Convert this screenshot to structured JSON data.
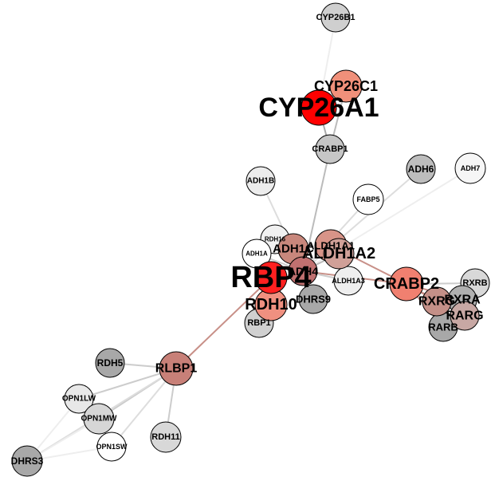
{
  "nodes": [
    "CYP26B1",
    "CRABP1",
    "ADH1B",
    "ADH6",
    "ADH7",
    "FABP5",
    "RDH16",
    "ADH1A",
    "ALDH1A3",
    "DHRS9",
    "RBP1",
    "RXRB",
    "RARB",
    "RXRA",
    "RXRG",
    "RARG",
    "RDH5",
    "OPN1LW",
    "OPN1MW",
    "OPN1SW",
    "RDH11",
    "DHRS3",
    "RLBP1",
    "ADH1C",
    "ALDH1A1",
    "ADH4",
    "RDH10",
    "CRABP2",
    "ALDH1A2",
    "CYP26C1",
    "RBP4",
    "CYP26A1"
  ]
}
